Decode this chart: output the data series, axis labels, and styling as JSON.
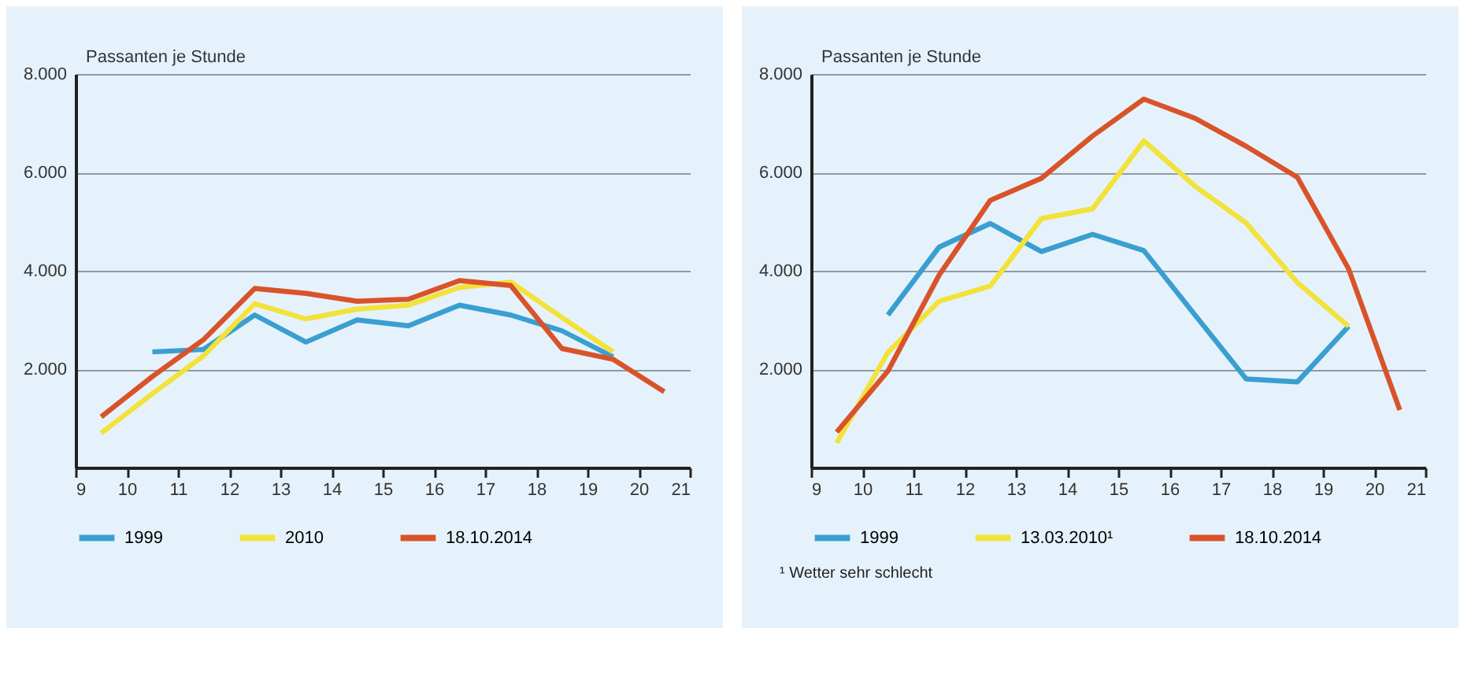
{
  "chart_data": [
    {
      "type": "line",
      "ylabel": "Passanten je Stunde",
      "xlim": [
        9,
        21
      ],
      "xticks": [
        9,
        10,
        11,
        12,
        13,
        14,
        15,
        16,
        17,
        18,
        19,
        20,
        21
      ],
      "ylim": [
        0,
        8000
      ],
      "yticks": [
        {
          "value": 2000,
          "label": "2.000"
        },
        {
          "value": 4000,
          "label": "4.000"
        },
        {
          "value": 6000,
          "label": "6.000"
        },
        {
          "value": 8000,
          "label": "8.000"
        }
      ],
      "grid": "y",
      "legend": "bottom",
      "marker": "none",
      "line_style": "solid",
      "series": [
        {
          "name": "1999",
          "color": "#3a9fd0",
          "x": [
            10.5,
            11.5,
            12.5,
            13.5,
            14.5,
            15.5,
            16.5,
            17.5,
            18.5,
            19.5
          ],
          "values": [
            2350,
            2400,
            3100,
            2550,
            3000,
            2880,
            3300,
            3100,
            2780,
            2250
          ]
        },
        {
          "name": "2010",
          "color": "#f2e23a",
          "x": [
            9.5,
            10.5,
            11.5,
            12.5,
            13.5,
            14.5,
            15.5,
            16.5,
            17.5,
            18.5,
            19.5
          ],
          "values": [
            700,
            1500,
            2270,
            3330,
            3020,
            3220,
            3300,
            3660,
            3770,
            3050,
            2350
          ]
        },
        {
          "name": "18.10.2014",
          "color": "#d9532a",
          "x": [
            9.5,
            10.5,
            11.5,
            12.5,
            13.5,
            14.5,
            15.5,
            16.5,
            17.5,
            18.5,
            19.5,
            20.5
          ],
          "values": [
            1030,
            1850,
            2600,
            3640,
            3540,
            3380,
            3420,
            3800,
            3700,
            2420,
            2200,
            1540
          ]
        }
      ]
    },
    {
      "type": "line",
      "ylabel": "Passanten je Stunde",
      "xlim": [
        9,
        21
      ],
      "xticks": [
        9,
        10,
        11,
        12,
        13,
        14,
        15,
        16,
        17,
        18,
        19,
        20,
        21
      ],
      "ylim": [
        0,
        8000
      ],
      "yticks": [
        {
          "value": 2000,
          "label": "2.000"
        },
        {
          "value": 4000,
          "label": "4.000"
        },
        {
          "value": 6000,
          "label": "6.000"
        },
        {
          "value": 8000,
          "label": "8.000"
        }
      ],
      "grid": "y",
      "legend": "bottom",
      "marker": "none",
      "line_style": "solid",
      "annotations": [
        "¹ Wetter sehr schlecht"
      ],
      "series": [
        {
          "name": "1999",
          "color": "#3a9fd0",
          "x": [
            10.5,
            11.5,
            12.5,
            13.5,
            14.5,
            15.5,
            16.5,
            17.5,
            18.5,
            19.5
          ],
          "values": [
            3100,
            4480,
            4960,
            4390,
            4740,
            4410,
            3100,
            1800,
            1740,
            2870
          ]
        },
        {
          "name": "13.03.2010¹",
          "color": "#f2e23a",
          "x": [
            9.5,
            10.5,
            11.5,
            12.5,
            13.5,
            14.5,
            15.5,
            16.5,
            17.5,
            18.5,
            19.5
          ],
          "values": [
            500,
            2340,
            3380,
            3690,
            5060,
            5260,
            6640,
            5720,
            4970,
            3760,
            2870
          ]
        },
        {
          "name": "18.10.2014",
          "color": "#d9532a",
          "x": [
            9.5,
            10.5,
            11.5,
            12.5,
            13.5,
            14.5,
            15.5,
            16.5,
            17.5,
            18.5,
            19.5,
            20.5
          ],
          "values": [
            720,
            1960,
            3910,
            5430,
            5880,
            6740,
            7490,
            7100,
            6530,
            5900,
            4040,
            1170
          ]
        }
      ]
    }
  ]
}
